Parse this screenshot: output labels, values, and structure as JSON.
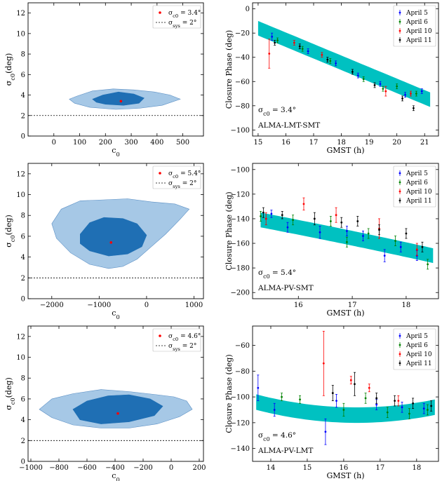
{
  "chart_data": [
    {
      "type": "contour",
      "xlabel": "c_0",
      "ylabel": "σ_c0(deg)",
      "xlim": [
        -100,
        580
      ],
      "ylim": [
        0,
        13
      ],
      "xticks": [
        0,
        100,
        200,
        300,
        400,
        500
      ],
      "yticks": [
        0,
        2,
        4,
        6,
        8,
        10,
        12
      ],
      "legend": {
        "position": "top-right",
        "entries": [
          "σ_c0 = 3.4°",
          "σ_sys = 2°"
        ]
      },
      "best_fit": {
        "x": 260,
        "y": 3.4
      },
      "sys_line": 2,
      "outer_contour": [
        [
          60,
          3.6
        ],
        [
          90,
          3.9
        ],
        [
          150,
          4.4
        ],
        [
          230,
          4.6
        ],
        [
          310,
          4.5
        ],
        [
          390,
          4.3
        ],
        [
          450,
          4.0
        ],
        [
          490,
          3.6
        ],
        [
          420,
          3.0
        ],
        [
          330,
          2.7
        ],
        [
          240,
          2.6
        ],
        [
          140,
          2.8
        ],
        [
          80,
          3.2
        ]
      ],
      "inner_contour": [
        [
          150,
          3.6
        ],
        [
          190,
          4.0
        ],
        [
          250,
          4.3
        ],
        [
          310,
          4.1
        ],
        [
          350,
          3.7
        ],
        [
          330,
          3.2
        ],
        [
          270,
          3.0
        ],
        [
          200,
          3.1
        ],
        [
          165,
          3.3
        ]
      ]
    },
    {
      "type": "scatter",
      "xlabel": "GMST (h)",
      "ylabel": "Closure Phase (deg)",
      "xlim": [
        14.8,
        21.5
      ],
      "ylim": [
        -105,
        5
      ],
      "xticks": [
        15,
        16,
        17,
        18,
        19,
        20,
        21
      ],
      "yticks": [
        0,
        -20,
        -40,
        -60,
        -80,
        -100
      ],
      "annotation": "σ_c0 = 3.4°",
      "baseline": "ALMA-LMT-SMT",
      "legend": {
        "position": "top-right",
        "entries": [
          "April 5",
          "April 6",
          "April 10",
          "April 11"
        ]
      },
      "band": {
        "x": [
          15.0,
          21.2
        ],
        "center_start": -16,
        "center_end": -75,
        "curvature": 0.0,
        "half_width": 6
      },
      "series": [
        {
          "name": "April 5",
          "color": "#0000ff",
          "points": [
            [
              15.5,
              -23,
              3
            ],
            [
              16.8,
              -35,
              2
            ],
            [
              17.8,
              -45,
              2
            ],
            [
              18.6,
              -55,
              2
            ],
            [
              19.4,
              -62,
              2
            ],
            [
              20.3,
              -71,
              2
            ],
            [
              20.9,
              -68,
              2
            ]
          ]
        },
        {
          "name": "April 6",
          "color": "#008000",
          "points": [
            [
              15.7,
              -26,
              2
            ],
            [
              16.6,
              -33,
              2
            ],
            [
              17.6,
              -43,
              2
            ],
            [
              18.8,
              -58,
              2
            ],
            [
              19.5,
              -66,
              2
            ],
            [
              20.0,
              -64,
              2
            ],
            [
              20.7,
              -70,
              2
            ]
          ]
        },
        {
          "name": "April 10",
          "color": "#ff0000",
          "points": [
            [
              15.4,
              -37,
              12
            ],
            [
              16.3,
              -28,
              2
            ],
            [
              17.3,
              -38,
              2
            ],
            [
              19.6,
              -68,
              4
            ],
            [
              20.5,
              -70,
              2
            ]
          ]
        },
        {
          "name": "April 11",
          "color": "#000000",
          "points": [
            [
              15.6,
              -28,
              2
            ],
            [
              16.5,
              -31,
              2
            ],
            [
              17.5,
              -42,
              2
            ],
            [
              18.4,
              -52,
              2
            ],
            [
              19.2,
              -63,
              2
            ],
            [
              20.2,
              -74,
              2
            ],
            [
              20.6,
              -82,
              2
            ]
          ]
        }
      ]
    },
    {
      "type": "contour",
      "xlabel": "c_0",
      "ylabel": "σ_c0(deg)",
      "xlim": [
        -2500,
        1200
      ],
      "ylim": [
        0,
        13
      ],
      "xticks": [
        -2000,
        -1000,
        0,
        1000
      ],
      "yticks": [
        0,
        2,
        4,
        6,
        8,
        10,
        12
      ],
      "legend": {
        "position": "top-right",
        "entries": [
          "σ_c0 = 5.4°",
          "σ_sys = 2°"
        ]
      },
      "best_fit": {
        "x": -750,
        "y": 5.4
      },
      "sys_line": 2,
      "outer_contour": [
        [
          -2000,
          7.2
        ],
        [
          -1800,
          8.6
        ],
        [
          -1400,
          9.4
        ],
        [
          -900,
          9.5
        ],
        [
          -400,
          9.6
        ],
        [
          100,
          9.3
        ],
        [
          600,
          9.1
        ],
        [
          900,
          8.6
        ],
        [
          700,
          7.6
        ],
        [
          400,
          6.2
        ],
        [
          100,
          5.0
        ],
        [
          -200,
          3.8
        ],
        [
          -500,
          3.1
        ],
        [
          -800,
          2.9
        ],
        [
          -1200,
          3.3
        ],
        [
          -1600,
          4.4
        ],
        [
          -1900,
          5.8
        ]
      ],
      "inner_contour": [
        [
          -1400,
          6.2
        ],
        [
          -1200,
          7.3
        ],
        [
          -900,
          7.8
        ],
        [
          -500,
          7.7
        ],
        [
          -200,
          7.2
        ],
        [
          0,
          6.1
        ],
        [
          -100,
          5.0
        ],
        [
          -400,
          4.3
        ],
        [
          -800,
          4.1
        ],
        [
          -1200,
          4.6
        ],
        [
          -1400,
          5.3
        ]
      ]
    },
    {
      "type": "scatter",
      "xlabel": "GMST (h)",
      "ylabel": "Closure Phase (deg)",
      "xlim": [
        15.15,
        18.6
      ],
      "ylim": [
        -205,
        -95
      ],
      "xticks": [
        16,
        17,
        18
      ],
      "yticks": [
        -100,
        -120,
        -140,
        -160,
        -180,
        -200
      ],
      "annotation": "σ_c0 = 5.4°",
      "baseline": "ALMA-PV-SMT",
      "legend": {
        "position": "top-right",
        "entries": [
          "April 5",
          "April 6",
          "April 10",
          "April 11"
        ]
      },
      "band": {
        "x": [
          15.3,
          18.5
        ],
        "center_start": -141,
        "center_end": -170,
        "curvature": 0.55,
        "half_width": 6
      },
      "series": [
        {
          "name": "April 5",
          "color": "#0000ff",
          "points": [
            [
              15.5,
              -136,
              3
            ],
            [
              15.8,
              -147,
              4
            ],
            [
              16.4,
              -151,
              5
            ],
            [
              16.9,
              -150,
              4
            ],
            [
              17.2,
              -154,
              4
            ],
            [
              17.6,
              -170,
              5
            ],
            [
              17.9,
              -163,
              4
            ],
            [
              18.2,
              -170,
              4
            ]
          ]
        },
        {
          "name": "April 6",
          "color": "#008000",
          "points": [
            [
              15.3,
              -138,
              4
            ],
            [
              15.9,
              -141,
              4
            ],
            [
              16.6,
              -142,
              4
            ],
            [
              16.9,
              -159,
              4
            ],
            [
              17.3,
              -152,
              4
            ],
            [
              17.8,
              -158,
              4
            ],
            [
              18.4,
              -177,
              4
            ]
          ]
        },
        {
          "name": "April 10",
          "color": "#ff0000",
          "points": [
            [
              15.4,
              -140,
              5
            ],
            [
              16.1,
              -128,
              5
            ],
            [
              16.7,
              -137,
              6
            ],
            [
              17.5,
              -148,
              8
            ],
            [
              18.2,
              -165,
              5
            ]
          ]
        },
        {
          "name": "April 11",
          "color": "#000000",
          "points": [
            [
              15.35,
              -135,
              4
            ],
            [
              15.7,
              -137,
              3
            ],
            [
              16.3,
              -140,
              5
            ],
            [
              16.8,
              -143,
              4
            ],
            [
              17.1,
              -142,
              4
            ],
            [
              17.5,
              -149,
              4
            ],
            [
              18.0,
              -152,
              4
            ],
            [
              18.3,
              -163,
              4
            ]
          ]
        }
      ]
    },
    {
      "type": "contour",
      "xlabel": "c_0",
      "ylabel": "σ_c0(deg)",
      "xlim": [
        -1020,
        230
      ],
      "ylim": [
        0,
        13
      ],
      "xticks": [
        -1000,
        -800,
        -600,
        -400,
        -200,
        0,
        200
      ],
      "yticks": [
        0,
        2,
        4,
        6,
        8,
        10,
        12
      ],
      "legend": {
        "position": "top-right",
        "entries": [
          "σ_c0 = 4.6°",
          "σ_sys = 2°"
        ]
      },
      "best_fit": {
        "x": -380,
        "y": 4.6
      },
      "sys_line": 2,
      "outer_contour": [
        [
          -940,
          5.0
        ],
        [
          -850,
          6.0
        ],
        [
          -700,
          6.5
        ],
        [
          -500,
          6.9
        ],
        [
          -300,
          6.7
        ],
        [
          -100,
          6.4
        ],
        [
          20,
          6.2
        ],
        [
          110,
          5.8
        ],
        [
          150,
          5.0
        ],
        [
          60,
          4.3
        ],
        [
          -100,
          3.6
        ],
        [
          -300,
          3.2
        ],
        [
          -500,
          3.2
        ],
        [
          -700,
          3.5
        ],
        [
          -850,
          4.2
        ]
      ],
      "inner_contour": [
        [
          -700,
          5.0
        ],
        [
          -600,
          5.8
        ],
        [
          -450,
          6.3
        ],
        [
          -300,
          6.4
        ],
        [
          -150,
          6.0
        ],
        [
          -60,
          5.3
        ],
        [
          -120,
          4.4
        ],
        [
          -300,
          3.8
        ],
        [
          -500,
          3.6
        ],
        [
          -650,
          4.0
        ]
      ]
    },
    {
      "type": "scatter",
      "xlabel": "GMST (h)",
      "ylabel": "Closure Phase (deg)",
      "xlim": [
        13.5,
        18.6
      ],
      "ylim": [
        -150,
        -45
      ],
      "xticks": [
        14,
        15,
        16,
        17,
        18
      ],
      "yticks": [
        -60,
        -80,
        -100,
        -120,
        -140
      ],
      "annotation": "σ_c0 = 4.6°",
      "baseline": "ALMA-PV-LMT",
      "legend": {
        "position": "top-right",
        "entries": [
          "April 5",
          "April 6",
          "April 10",
          "April 11"
        ]
      },
      "band": {
        "x": [
          13.6,
          18.5
        ],
        "center_start": -104,
        "center_end": -108,
        "curvature": -8,
        "half_width": 6
      },
      "series": [
        {
          "name": "April 5",
          "color": "#0000ff",
          "points": [
            [
              13.65,
              -93,
              10
            ],
            [
              14.1,
              -110,
              5
            ],
            [
              15.5,
              -127,
              10
            ],
            [
              15.8,
              -103,
              5
            ],
            [
              16.9,
              -106,
              4
            ],
            [
              17.6,
              -108,
              4
            ],
            [
              18.2,
              -109,
              4
            ]
          ]
        },
        {
          "name": "April 6",
          "color": "#008000",
          "points": [
            [
              14.3,
              -100,
              3
            ],
            [
              14.8,
              -102,
              3
            ],
            [
              16.0,
              -110,
              5
            ],
            [
              16.6,
              -101,
              4
            ],
            [
              17.2,
              -112,
              4
            ],
            [
              17.8,
              -113,
              4
            ],
            [
              18.3,
              -110,
              4
            ]
          ]
        },
        {
          "name": "April 10",
          "color": "#ff0000",
          "points": [
            [
              15.45,
              -74,
              25
            ],
            [
              16.2,
              -87,
              3
            ],
            [
              16.7,
              -93,
              3
            ],
            [
              17.5,
              -103,
              4
            ]
          ]
        },
        {
          "name": "April 11",
          "color": "#000000",
          "points": [
            [
              15.7,
              -97,
              6
            ],
            [
              16.3,
              -90,
              9
            ],
            [
              16.9,
              -101,
              4
            ],
            [
              17.4,
              -103,
              4
            ],
            [
              17.9,
              -105,
              4
            ],
            [
              18.4,
              -107,
              4
            ]
          ]
        }
      ]
    }
  ]
}
